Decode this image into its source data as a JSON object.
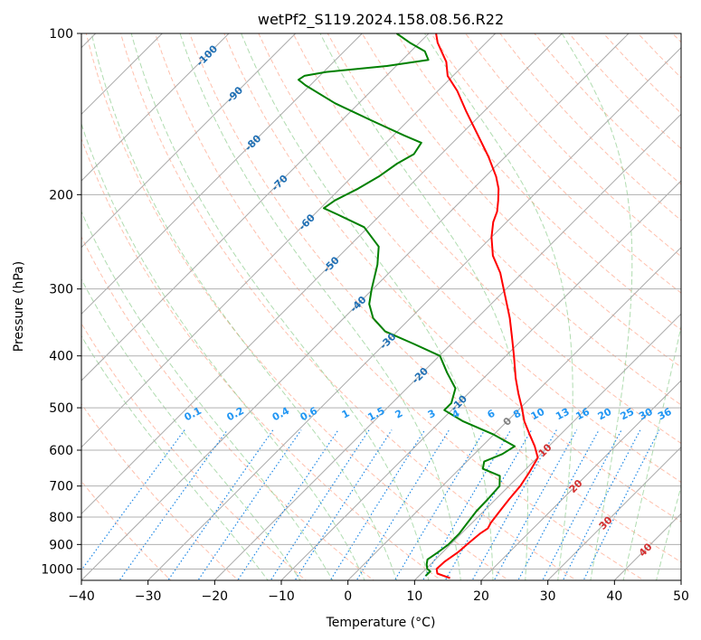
{
  "chart_data": {
    "type": "line",
    "title": "wetPf2_S119.2024.158.08.56.R22",
    "xlabel": "Temperature (°C)",
    "ylabel": "Pressure (hPa)",
    "xlim": [
      -40,
      50
    ],
    "ylim_hpa": [
      1050,
      100
    ],
    "x_ticks": [
      -40,
      -30,
      -20,
      -10,
      0,
      10,
      20,
      30,
      40,
      50
    ],
    "x_tick_labels": [
      "−40",
      "−30",
      "−20",
      "−10",
      "0",
      "10",
      "20",
      "30",
      "40",
      "50"
    ],
    "y_ticks": [
      100,
      200,
      300,
      400,
      500,
      600,
      700,
      800,
      900,
      1000
    ],
    "y_tick_labels": [
      "100",
      "200",
      "300",
      "400",
      "500",
      "600",
      "700",
      "800",
      "900",
      "1000"
    ],
    "grid": true,
    "skew_degrees": 45,
    "colors": {
      "temperature": "#ff0000",
      "dewpoint": "#008000",
      "isotherm": "#a9a9a9",
      "dry_adiabat": "#ff8c69",
      "moist_adiabat": "#6fbf6f",
      "mixing_ratio": "#1e88e5",
      "isotherm_label": "#1f6fb4",
      "moist_label": "#d32f2f",
      "zero_label": "#808080"
    },
    "series": [
      {
        "role": "temperature",
        "points": [
          [
            1040,
            15
          ],
          [
            1020,
            12.4
          ],
          [
            1000,
            11.6
          ],
          [
            970,
            11.7
          ],
          [
            930,
            12.3
          ],
          [
            900,
            12.5
          ],
          [
            860,
            12.8
          ],
          [
            840,
            13.2
          ],
          [
            820,
            12.8
          ],
          [
            780,
            12.4
          ],
          [
            740,
            12.0
          ],
          [
            700,
            11.7
          ],
          [
            660,
            11.0
          ],
          [
            620,
            10.1
          ],
          [
            590,
            7.9
          ],
          [
            560,
            5.3
          ],
          [
            530,
            2.6
          ],
          [
            500,
            0.2
          ],
          [
            470,
            -2.5
          ],
          [
            440,
            -5.2
          ],
          [
            400,
            -8.8
          ],
          [
            370,
            -11.8
          ],
          [
            340,
            -15.1
          ],
          [
            310,
            -19.0
          ],
          [
            280,
            -23.3
          ],
          [
            260,
            -27.0
          ],
          [
            240,
            -30.0
          ],
          [
            225,
            -32.0
          ],
          [
            215,
            -33.0
          ],
          [
            205,
            -34.5
          ],
          [
            195,
            -36.2
          ],
          [
            185,
            -38.4
          ],
          [
            170,
            -42.5
          ],
          [
            155,
            -47.3
          ],
          [
            140,
            -52.6
          ],
          [
            128,
            -57.1
          ],
          [
            120,
            -60.8
          ],
          [
            113,
            -63.1
          ],
          [
            108,
            -65.4
          ],
          [
            104,
            -67.3
          ],
          [
            100,
            -68.9
          ]
        ]
      },
      {
        "role": "dewpoint",
        "points": [
          [
            1030,
            11.0
          ],
          [
            1010,
            11.0
          ],
          [
            1000,
            10.2
          ],
          [
            980,
            9.4
          ],
          [
            960,
            8.8
          ],
          [
            930,
            9.3
          ],
          [
            900,
            9.7
          ],
          [
            860,
            9.7
          ],
          [
            820,
            9.3
          ],
          [
            780,
            8.9
          ],
          [
            740,
            8.8
          ],
          [
            700,
            8.6
          ],
          [
            670,
            7.1
          ],
          [
            650,
            3.5
          ],
          [
            630,
            2.6
          ],
          [
            610,
            4.2
          ],
          [
            590,
            4.9
          ],
          [
            560,
            -0.2
          ],
          [
            530,
            -6.6
          ],
          [
            505,
            -11.1
          ],
          [
            490,
            -11.1
          ],
          [
            460,
            -12.7
          ],
          [
            430,
            -16.3
          ],
          [
            400,
            -19.9
          ],
          [
            380,
            -25.6
          ],
          [
            360,
            -31.8
          ],
          [
            340,
            -35.6
          ],
          [
            320,
            -38.3
          ],
          [
            300,
            -40.2
          ],
          [
            270,
            -43.0
          ],
          [
            250,
            -45.5
          ],
          [
            230,
            -50.6
          ],
          [
            218,
            -56.4
          ],
          [
            212,
            -59.5
          ],
          [
            205,
            -59.0
          ],
          [
            195,
            -57.3
          ],
          [
            185,
            -56.0
          ],
          [
            175,
            -55.2
          ],
          [
            168,
            -54.1
          ],
          [
            160,
            -54.7
          ],
          [
            155,
            -58.4
          ],
          [
            145,
            -65.8
          ],
          [
            135,
            -73.6
          ],
          [
            125,
            -80.7
          ],
          [
            122,
            -82.6
          ],
          [
            120,
            -82.3
          ],
          [
            118,
            -79.6
          ],
          [
            115,
            -71.4
          ],
          [
            112,
            -66.1
          ],
          [
            108,
            -67.9
          ],
          [
            104,
            -71.5
          ],
          [
            100,
            -74.8
          ]
        ]
      }
    ],
    "isotherm_labels": [
      {
        "t": -100,
        "p": 110,
        "text": "-100"
      },
      {
        "t": -90,
        "p": 130,
        "text": "-90"
      },
      {
        "t": -80,
        "p": 160,
        "text": "-80"
      },
      {
        "t": -70,
        "p": 190,
        "text": "-70"
      },
      {
        "t": -60,
        "p": 225,
        "text": "-60"
      },
      {
        "t": -50,
        "p": 270,
        "text": "-50"
      },
      {
        "t": -40,
        "p": 320,
        "text": "-40"
      },
      {
        "t": -30,
        "p": 375,
        "text": "-30"
      },
      {
        "t": -20,
        "p": 435,
        "text": "-20"
      },
      {
        "t": -10,
        "p": 490,
        "text": "-10"
      },
      {
        "t": 0,
        "p": 530,
        "text": "0"
      }
    ],
    "mixing_ratio_lines": [
      0.1,
      0.2,
      0.4,
      0.6,
      1,
      1.5,
      2,
      3,
      4,
      6,
      8,
      10,
      13,
      16,
      20,
      25,
      30,
      36
    ],
    "mixing_ratio_labels": [
      "0.1",
      "0.2",
      "0.4",
      "0.6",
      "1",
      "1.5",
      "2",
      "3",
      "4",
      "6",
      "8",
      "10",
      "13",
      "16",
      "20",
      "25",
      "30",
      "36"
    ],
    "moist_adiabat_labels": [
      {
        "t": 10,
        "p": 600,
        "text": "10"
      },
      {
        "t": 20,
        "p": 700,
        "text": "20"
      },
      {
        "t": 30,
        "p": 820,
        "text": "30"
      },
      {
        "t": 40,
        "p": 920,
        "text": "40"
      }
    ]
  }
}
